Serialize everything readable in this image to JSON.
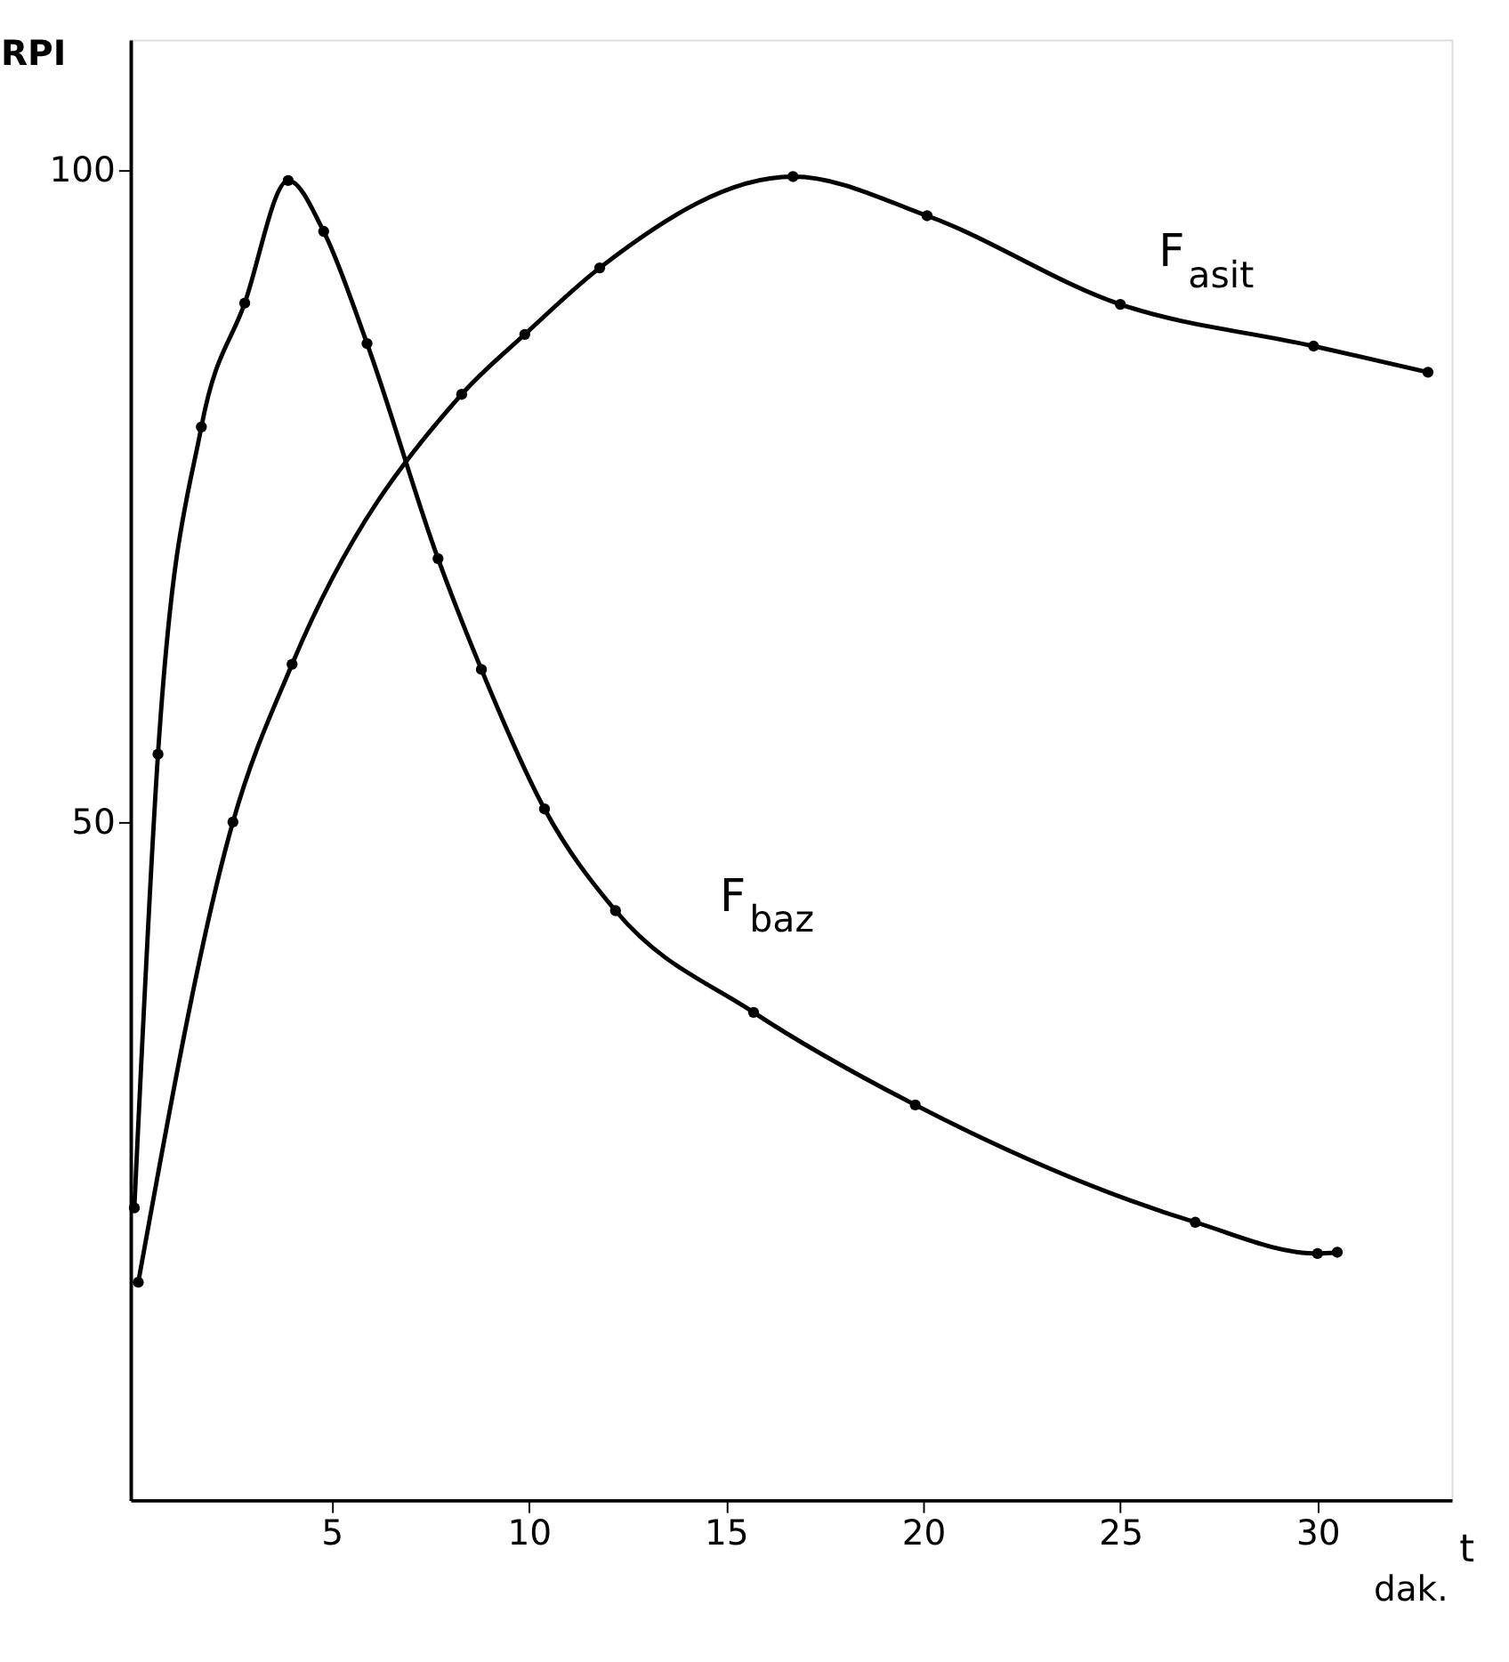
{
  "chart_data": {
    "type": "line",
    "ylabel": "RPI",
    "xlabel": "t",
    "annotations": [
      "dak."
    ],
    "xlim": [
      -0.1,
      33.4
    ],
    "xticks": [
      5,
      10,
      15,
      20,
      25,
      30
    ],
    "ylim": [
      -2,
      110
    ],
    "yticks": [
      50,
      100
    ],
    "grid": false,
    "marker": "circle",
    "line_style": "solid",
    "series": [
      {
        "name": "F$_{baz}$",
        "color": "#000000",
        "x": [
          0,
          0.6,
          1.7,
          2.8,
          3.9,
          4.8,
          5.9,
          7.7,
          8.8,
          10.4,
          12.2,
          15.7,
          19.8,
          26.9,
          30.0,
          30.5
        ],
        "values": [
          20.4,
          55.2,
          80.3,
          89.8,
          99.2,
          95.3,
          86.7,
          70.2,
          61.7,
          51,
          43.2,
          35.4,
          28.3,
          19.3,
          16.9,
          17.0
        ]
      },
      {
        "name": "F$_{asit}$",
        "color": "#000000",
        "x": [
          0.1,
          2.5,
          4.0,
          8.3,
          9.9,
          11.8,
          16.7,
          20.1,
          25.0,
          29.9,
          32.8
        ],
        "values": [
          14.7,
          50,
          62.1,
          82.8,
          87.4,
          92.5,
          99.5,
          96.5,
          89.7,
          86.5,
          84.5
        ]
      }
    ]
  }
}
